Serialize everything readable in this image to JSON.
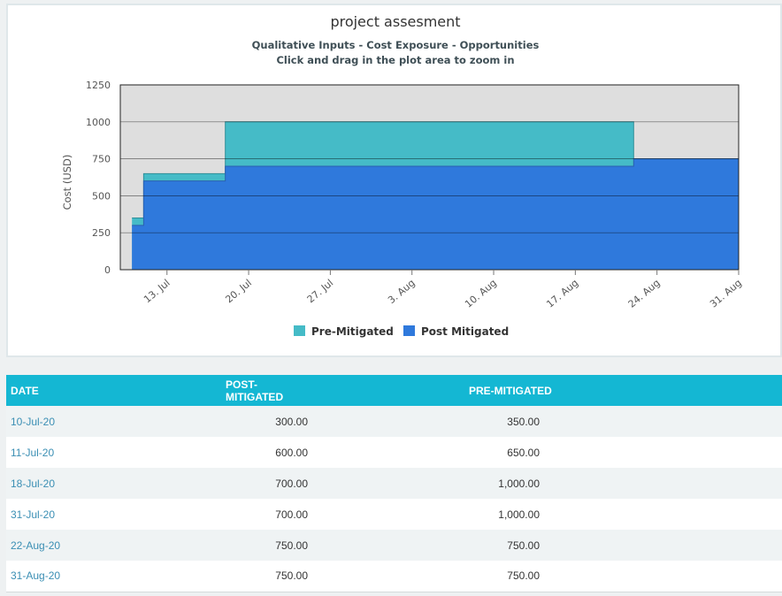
{
  "chart_data": {
    "type": "area",
    "title": "project assesment",
    "subtitles": [
      "Qualitative Inputs - Cost Exposure - Opportunities",
      "Click and drag in the plot area to zoom in"
    ],
    "ylabel": "Cost (USD)",
    "xlabel": "",
    "ylim": [
      0,
      1250
    ],
    "yticks": [
      "0",
      "250",
      "500",
      "750",
      "1000",
      "1250"
    ],
    "ytick_values": [
      0,
      250,
      500,
      750,
      1000,
      1250
    ],
    "xtick_labels": [
      "13. Jul",
      "20. Jul",
      "27. Jul",
      "3. Aug",
      "10. Aug",
      "17. Aug",
      "24. Aug",
      "31. Aug"
    ],
    "xtick_dates": [
      "2020-07-13",
      "2020-07-20",
      "2020-07-27",
      "2020-08-03",
      "2020-08-10",
      "2020-08-17",
      "2020-08-24",
      "2020-08-31"
    ],
    "xlim": [
      "2020-07-09",
      "2020-08-31"
    ],
    "step": true,
    "grid": true,
    "legend_position": "bottom-center",
    "x": [
      "2020-07-10",
      "2020-07-11",
      "2020-07-18",
      "2020-07-31",
      "2020-08-22",
      "2020-08-31"
    ],
    "series": [
      {
        "name": "Pre-Mitigated",
        "color": "#45bbc7",
        "values": [
          350,
          650,
          1000,
          1000,
          750,
          750
        ]
      },
      {
        "name": "Post Mitigated",
        "color": "#2f79dc",
        "values": [
          300,
          600,
          700,
          700,
          750,
          750
        ]
      }
    ]
  },
  "table": {
    "headers": {
      "date": "DATE",
      "post": "POST-MITIGATED",
      "pre": "PRE-MITIGATED"
    },
    "rows": [
      {
        "date": "10-Jul-20",
        "post": "300.00",
        "pre": "350.00"
      },
      {
        "date": "11-Jul-20",
        "post": "600.00",
        "pre": "650.00"
      },
      {
        "date": "18-Jul-20",
        "post": "700.00",
        "pre": "1,000.00"
      },
      {
        "date": "31-Jul-20",
        "post": "700.00",
        "pre": "1,000.00"
      },
      {
        "date": "22-Aug-20",
        "post": "750.00",
        "pre": "750.00"
      },
      {
        "date": "31-Aug-20",
        "post": "750.00",
        "pre": "750.00"
      }
    ]
  },
  "colors": {
    "header": "#14b7d3",
    "plot_background": "#dedede",
    "link": "#3b8fb4"
  }
}
